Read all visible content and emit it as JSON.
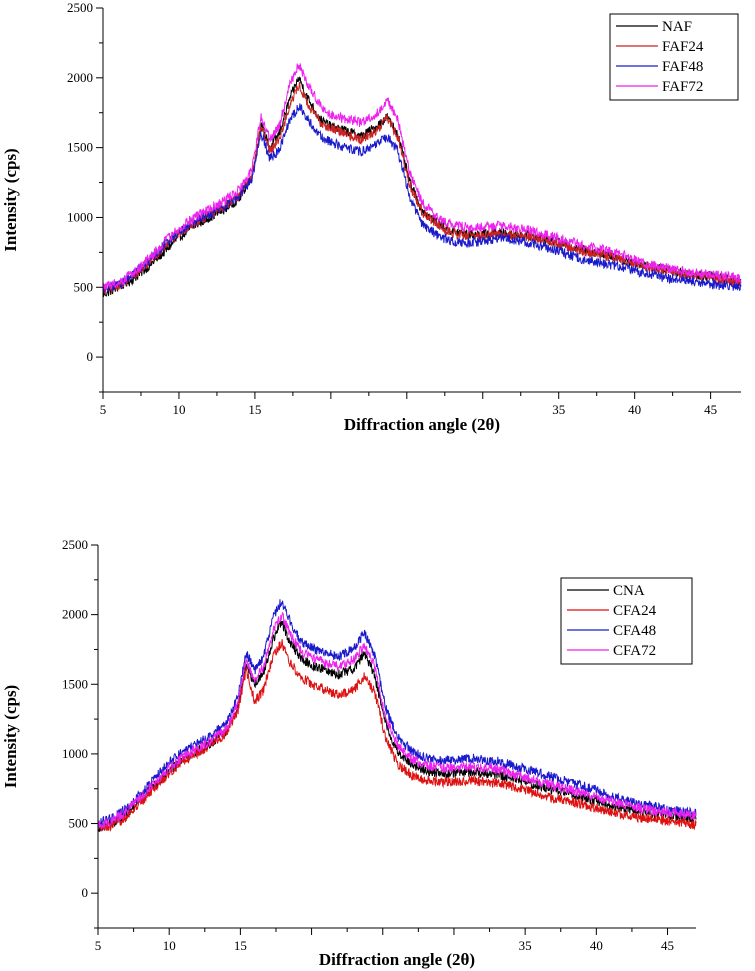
{
  "chart_data": [
    {
      "type": "line",
      "title": "",
      "xlabel": "Diffraction angle (2θ)",
      "ylabel": "Intensity (cps)",
      "xlim": [
        5,
        47
      ],
      "ylim": [
        -250,
        2500
      ],
      "xticks": [
        5,
        10,
        15,
        20,
        25,
        30,
        35,
        40,
        45
      ],
      "xtick_labels": [
        "5",
        "10",
        "15",
        "",
        "",
        "",
        "35",
        "40",
        "45"
      ],
      "yticks": [
        0,
        500,
        1000,
        1500,
        2000,
        2500
      ],
      "ytick_labels": [
        "0",
        "500",
        "1000",
        "1500",
        "2000",
        "2500"
      ],
      "legend_position": "top-right",
      "x": [
        5,
        6,
        7,
        8,
        9,
        10,
        11,
        12,
        13,
        14,
        14.8,
        15.4,
        16,
        16.6,
        17.3,
        17.9,
        18.5,
        19.3,
        20,
        21,
        22,
        23,
        23.7,
        24.4,
        25.2,
        26,
        27,
        28,
        29,
        30,
        31,
        32,
        33,
        34,
        35,
        36,
        37,
        38,
        39,
        40,
        41,
        42,
        43,
        44,
        45,
        46,
        47
      ],
      "series": [
        {
          "name": "NAF",
          "color": "#000000",
          "noise": 35,
          "values": [
            450,
            500,
            560,
            650,
            750,
            860,
            940,
            1000,
            1060,
            1140,
            1300,
            1660,
            1500,
            1600,
            1850,
            2000,
            1850,
            1700,
            1650,
            1620,
            1580,
            1650,
            1720,
            1600,
            1250,
            1050,
            960,
            900,
            880,
            880,
            890,
            880,
            870,
            850,
            820,
            790,
            760,
            740,
            710,
            680,
            650,
            630,
            610,
            590,
            580,
            560,
            540
          ]
        },
        {
          "name": "FAF24",
          "color": "#cc2222",
          "noise": 35,
          "values": [
            480,
            510,
            580,
            680,
            780,
            890,
            960,
            1020,
            1080,
            1160,
            1300,
            1650,
            1480,
            1560,
            1800,
            1950,
            1800,
            1680,
            1640,
            1600,
            1560,
            1620,
            1720,
            1580,
            1230,
            1040,
            950,
            890,
            870,
            870,
            880,
            870,
            860,
            840,
            810,
            780,
            750,
            730,
            700,
            670,
            640,
            620,
            600,
            580,
            570,
            550,
            530
          ]
        },
        {
          "name": "FAF48",
          "color": "#1a1acc",
          "noise": 35,
          "values": [
            490,
            520,
            590,
            690,
            800,
            900,
            970,
            1020,
            1080,
            1160,
            1280,
            1600,
            1420,
            1480,
            1700,
            1800,
            1700,
            1580,
            1540,
            1500,
            1470,
            1520,
            1580,
            1480,
            1150,
            950,
            870,
            830,
            820,
            830,
            850,
            840,
            820,
            790,
            760,
            720,
            690,
            670,
            650,
            620,
            590,
            570,
            550,
            540,
            520,
            510,
            500
          ]
        },
        {
          "name": "FAF72",
          "color": "#ee22ee",
          "noise": 35,
          "values": [
            500,
            530,
            610,
            700,
            820,
            920,
            1000,
            1060,
            1120,
            1200,
            1340,
            1730,
            1560,
            1660,
            1950,
            2100,
            1950,
            1800,
            1740,
            1700,
            1680,
            1740,
            1840,
            1700,
            1320,
            1110,
            1000,
            950,
            930,
            930,
            940,
            930,
            910,
            880,
            850,
            820,
            790,
            770,
            740,
            700,
            660,
            640,
            620,
            600,
            590,
            580,
            560
          ]
        }
      ]
    },
    {
      "type": "line",
      "title": "",
      "xlabel": "Diffraction angle (2θ)",
      "ylabel": "Intensity (cps)",
      "xlim": [
        5,
        47
      ],
      "ylim": [
        -250,
        2500
      ],
      "xticks": [
        5,
        10,
        15,
        20,
        25,
        30,
        35,
        40,
        45
      ],
      "xtick_labels": [
        "5",
        "10",
        "15",
        "",
        "",
        "",
        "35",
        "40",
        "45"
      ],
      "yticks": [
        0,
        500,
        1000,
        1500,
        2000,
        2500
      ],
      "ytick_labels": [
        "0",
        "500",
        "1000",
        "1500",
        "2000",
        "2500"
      ],
      "legend_position": "top-right",
      "x": [
        5,
        6,
        7,
        8,
        9,
        10,
        11,
        12,
        13,
        14,
        14.8,
        15.4,
        16,
        16.6,
        17.3,
        17.9,
        18.5,
        19.3,
        20,
        21,
        22,
        23,
        23.7,
        24.4,
        25.2,
        26,
        27,
        28,
        29,
        30,
        31,
        32,
        33,
        34,
        35,
        36,
        37,
        38,
        39,
        40,
        41,
        42,
        43,
        44,
        45,
        46,
        47
      ],
      "series": [
        {
          "name": "CNA",
          "color": "#000000",
          "noise": 35,
          "values": [
            470,
            500,
            570,
            670,
            780,
            880,
            960,
            1020,
            1080,
            1160,
            1320,
            1650,
            1500,
            1580,
            1820,
            1950,
            1800,
            1680,
            1640,
            1600,
            1570,
            1620,
            1720,
            1580,
            1220,
            1020,
            930,
            880,
            860,
            860,
            870,
            860,
            850,
            830,
            800,
            770,
            740,
            720,
            690,
            660,
            630,
            610,
            590,
            570,
            560,
            550,
            530
          ]
        },
        {
          "name": "CFA24",
          "color": "#dd1111",
          "noise": 35,
          "values": [
            460,
            480,
            550,
            650,
            760,
            860,
            950,
            1010,
            1070,
            1150,
            1300,
            1600,
            1380,
            1450,
            1700,
            1800,
            1650,
            1550,
            1500,
            1460,
            1420,
            1460,
            1560,
            1450,
            1120,
            930,
            850,
            810,
            800,
            800,
            810,
            800,
            790,
            770,
            740,
            710,
            680,
            660,
            640,
            610,
            580,
            560,
            540,
            530,
            520,
            510,
            490
          ]
        },
        {
          "name": "CFA48",
          "color": "#1a1acc",
          "noise": 35,
          "values": [
            500,
            540,
            610,
            710,
            830,
            940,
            1020,
            1080,
            1140,
            1220,
            1400,
            1730,
            1600,
            1690,
            1980,
            2100,
            1950,
            1800,
            1760,
            1720,
            1700,
            1760,
            1870,
            1720,
            1330,
            1130,
            1020,
            970,
            950,
            960,
            970,
            960,
            950,
            920,
            890,
            860,
            830,
            800,
            770,
            740,
            700,
            670,
            640,
            620,
            600,
            590,
            570
          ]
        },
        {
          "name": "CFA72",
          "color": "#ee22ee",
          "noise": 35,
          "values": [
            490,
            520,
            590,
            690,
            800,
            900,
            980,
            1040,
            1100,
            1180,
            1350,
            1680,
            1530,
            1620,
            1880,
            2000,
            1860,
            1730,
            1690,
            1650,
            1630,
            1680,
            1780,
            1640,
            1260,
            1070,
            970,
            920,
            900,
            900,
            910,
            900,
            890,
            860,
            830,
            800,
            770,
            750,
            720,
            690,
            660,
            640,
            610,
            590,
            580,
            570,
            550
          ]
        }
      ]
    }
  ]
}
